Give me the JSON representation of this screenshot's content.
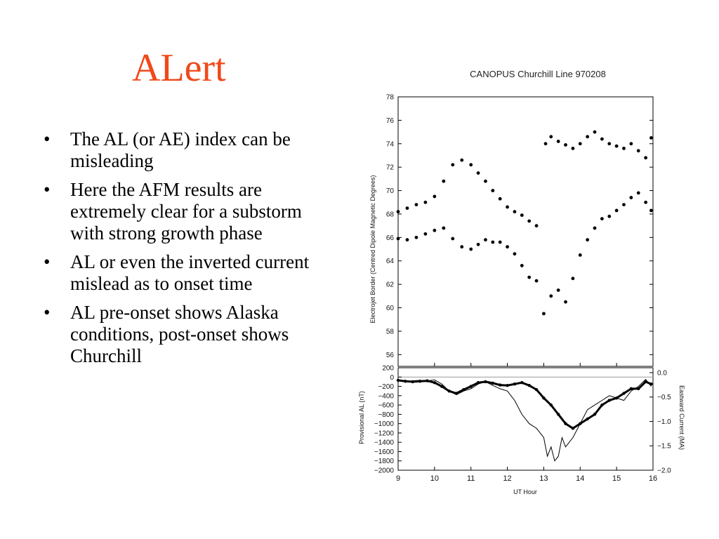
{
  "slide": {
    "title": "ALert",
    "bullets": [
      "The AL (or AE) index can be misleading",
      "Here the AFM results are extremely clear for a substorm with strong growth phase",
      "AL or even the inverted current mislead as to onset time",
      "AL pre-onset shows Alaska conditions, post-onset shows Churchill"
    ],
    "bullet_glyph": "•",
    "title_color": "#f0491a"
  },
  "chart_data": [
    {
      "type": "scatter",
      "title": "CANOPUS Churchill Line 970208",
      "xlabel": "",
      "ylabel": "Electrojet Border (Centred Dipole Magnetic Degrees)",
      "xlim": [
        9,
        16
      ],
      "ylim": [
        55,
        78
      ],
      "yticks": [
        56,
        58,
        60,
        62,
        64,
        66,
        68,
        70,
        72,
        74,
        76,
        78
      ],
      "series": [
        {
          "x": [
            9.0,
            9.25,
            9.5,
            9.75,
            10.0,
            10.25,
            10.5,
            10.75,
            11.0,
            11.2,
            11.4,
            11.6,
            11.8,
            12.0,
            12.2,
            12.4,
            12.6,
            12.8,
            13.05,
            13.2,
            13.4,
            13.6,
            13.8,
            14.0,
            14.2,
            14.4,
            14.6,
            14.8,
            15.0,
            15.2,
            15.4,
            15.6,
            15.8,
            15.95
          ],
          "y": [
            68.2,
            68.5,
            68.8,
            69.0,
            69.5,
            70.8,
            72.2,
            72.6,
            72.2,
            71.5,
            70.8,
            70.0,
            69.3,
            68.6,
            68.2,
            67.9,
            67.4,
            67.0,
            74.0,
            74.6,
            74.2,
            73.9,
            73.6,
            74.0,
            74.6,
            75.0,
            74.4,
            74.0,
            73.8,
            73.6,
            74.0,
            73.4,
            72.8,
            74.5
          ]
        },
        {
          "x": [
            9.0,
            9.25,
            9.5,
            9.75,
            10.0,
            10.25,
            10.5,
            10.75,
            11.0,
            11.2,
            11.4,
            11.6,
            11.8,
            12.0,
            12.2,
            12.4,
            12.6,
            12.8,
            13.0,
            13.2,
            13.4,
            13.6,
            13.8,
            14.0,
            14.2,
            14.4,
            14.6,
            14.8,
            15.0,
            15.2,
            15.4,
            15.6,
            15.8,
            15.95
          ],
          "y": [
            65.9,
            65.8,
            66.0,
            66.3,
            66.6,
            66.8,
            65.9,
            65.2,
            65.0,
            65.4,
            65.8,
            65.6,
            65.6,
            65.2,
            64.6,
            63.6,
            62.6,
            62.3,
            59.5,
            61.0,
            61.5,
            60.5,
            62.5,
            64.5,
            65.8,
            66.8,
            67.6,
            67.8,
            68.3,
            68.8,
            69.4,
            69.8,
            69.0,
            68.3
          ]
        }
      ]
    },
    {
      "type": "line",
      "title": "",
      "xlabel": "UT Hour",
      "ylabel": "Provisional AL (nT)",
      "y2label": "Eastward Current (MA)",
      "xlim": [
        9,
        16
      ],
      "ylim": [
        -2000,
        200
      ],
      "y2lim": [
        -2.0,
        0.1
      ],
      "xticks": [
        9,
        10,
        11,
        12,
        13,
        14,
        15,
        16
      ],
      "yticks": [
        200,
        0,
        -200,
        -400,
        -600,
        -800,
        -1000,
        -1200,
        -1400,
        -1600,
        -1800,
        -2000
      ],
      "y2ticks": [
        0.0,
        -0.5,
        -1.0,
        -1.5,
        -2.0
      ],
      "y2tick_labels": [
        "0.0",
        "−0.5",
        "−1.0",
        "−1.5",
        "−2.0"
      ],
      "series": [
        {
          "x": [
            9.0,
            9.2,
            9.4,
            9.6,
            9.8,
            10.0,
            10.2,
            10.4,
            10.6,
            10.8,
            11.0,
            11.2,
            11.4,
            11.6,
            11.8,
            12.0,
            12.2,
            12.4,
            12.6,
            12.8,
            13.0,
            13.1,
            13.2,
            13.3,
            13.4,
            13.5,
            13.6,
            13.8,
            14.0,
            14.2,
            14.4,
            14.6,
            14.8,
            15.0,
            15.2,
            15.4,
            15.6,
            15.8,
            15.95
          ],
          "y": [
            -80,
            -100,
            -80,
            -70,
            -80,
            -60,
            -150,
            -300,
            -380,
            -300,
            -250,
            -150,
            -100,
            -180,
            -250,
            -300,
            -500,
            -800,
            -1000,
            -1100,
            -1300,
            -1700,
            -1500,
            -1800,
            -1700,
            -1300,
            -1500,
            -1300,
            -1000,
            -700,
            -600,
            -500,
            -400,
            -450,
            -500,
            -300,
            -200,
            -50,
            -200
          ]
        },
        {
          "x": [
            9.0,
            9.2,
            9.4,
            9.6,
            9.8,
            10.0,
            10.2,
            10.4,
            10.6,
            10.8,
            11.0,
            11.2,
            11.4,
            11.6,
            11.8,
            12.0,
            12.2,
            12.4,
            12.6,
            12.8,
            13.0,
            13.2,
            13.4,
            13.6,
            13.8,
            14.0,
            14.2,
            14.4,
            14.6,
            14.8,
            15.0,
            15.2,
            15.4,
            15.6,
            15.8,
            15.95
          ],
          "y": [
            -70,
            -90,
            -100,
            -90,
            -80,
            -120,
            -200,
            -300,
            -350,
            -270,
            -200,
            -120,
            -100,
            -130,
            -170,
            -180,
            -150,
            -120,
            -180,
            -270,
            -450,
            -600,
            -800,
            -1000,
            -1100,
            -1000,
            -900,
            -800,
            -600,
            -500,
            -450,
            -350,
            -250,
            -250,
            -100,
            -150
          ]
        }
      ]
    }
  ]
}
